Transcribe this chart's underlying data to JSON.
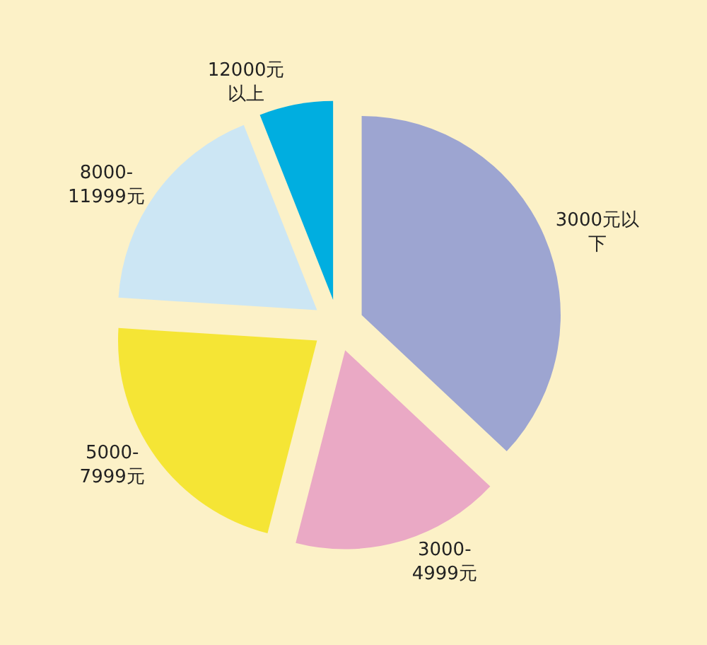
{
  "chart_data": {
    "type": "pie",
    "categories": [
      "3000元以下",
      "3000-4999元",
      "5000-7999元",
      "8000-11999元",
      "12000元以上"
    ],
    "values": [
      37,
      17,
      22,
      18,
      6
    ],
    "colors": [
      "#9da5d1",
      "#eaa9c5",
      "#f5e535",
      "#cce6f4",
      "#00aee0"
    ],
    "legend": false
  }
}
